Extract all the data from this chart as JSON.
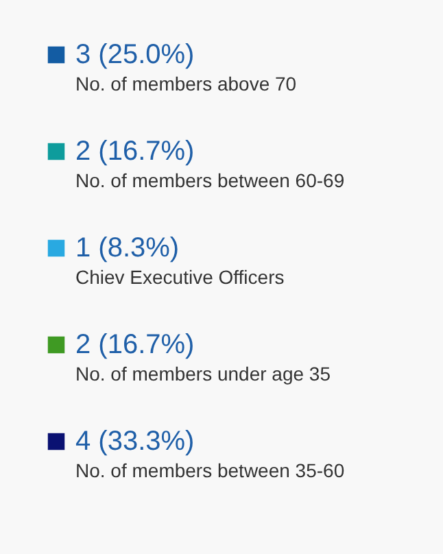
{
  "chart_data": {
    "type": "other",
    "categories": [
      "No. of members above 70",
      "No. of members between 60-69",
      "Chiev Executive Officers",
      "No. of members under age 35",
      "No. of members between 35-60"
    ],
    "values": [
      3,
      2,
      1,
      2,
      4
    ],
    "value_labels": [
      "3 (25.0%)",
      "2 (16.7%)",
      "1 (8.3%)",
      "2 (16.7%)",
      "4 (33.3%)"
    ],
    "colors": [
      "#135ca3",
      "#0e9c9c",
      "#29a9e1",
      "#3f9a23",
      "#0a1172"
    ]
  }
}
